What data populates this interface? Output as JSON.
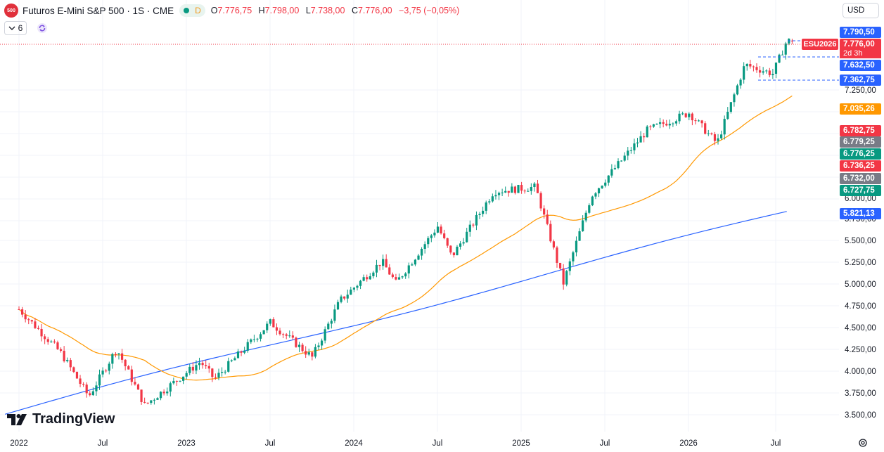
{
  "header": {
    "symbol_badge": "500",
    "title": "Futuros E-Mini S&P 500 · 1S · CME",
    "d_letter": "D",
    "open_label": "O",
    "open": "7.776,75",
    "high_label": "H",
    "high": "7.798,00",
    "low_label": "L",
    "low": "7.738,00",
    "close_label": "C",
    "close": "7.776,00",
    "change": "−3,75 (−0,05%)"
  },
  "indicators": {
    "count": "6",
    "chevron_icon": "chevron-down-icon",
    "refresh_icon": "refresh-icon"
  },
  "currency": "USD",
  "logo_text": "TradingView",
  "settings_icon": "gear-icon",
  "price_axis": {
    "ticks": [
      "7.250,00",
      "6.000,00",
      "5.750,00",
      "5.500,00",
      "5.250,00",
      "5.000,00",
      "4.750,00",
      "4.500,00",
      "4.250,00",
      "4.000,00",
      "3.750,00",
      "3.500,00"
    ]
  },
  "time_axis": {
    "ticks": [
      "2022",
      "Jul",
      "2023",
      "Jul",
      "2024",
      "Jul",
      "2025",
      "Jul",
      "2026",
      "Jul"
    ]
  },
  "price_labels": [
    {
      "text": "7.790,50",
      "color": "#2962ff"
    },
    {
      "text": "7.776,00",
      "color": "#f23645"
    },
    {
      "text": "2d 3h",
      "color": "#f23645"
    },
    {
      "text": "7.632,50",
      "color": "#2962ff"
    },
    {
      "text": "7.362,75",
      "color": "#2962ff"
    },
    {
      "text": "7.035,26",
      "color": "#ff9800"
    },
    {
      "text": "6.782,75",
      "color": "#f23645"
    },
    {
      "text": "6.779,25",
      "color": "#787b86"
    },
    {
      "text": "6.776,25",
      "color": "#089981"
    },
    {
      "text": "6.736,25",
      "color": "#f23645"
    },
    {
      "text": "6.732,00",
      "color": "#787b86"
    },
    {
      "text": "6.727,75",
      "color": "#089981"
    },
    {
      "text": "5.821,13",
      "color": "#2962ff"
    }
  ],
  "contract_badge": "ESU2026",
  "colors": {
    "up": "#089981",
    "down": "#f23645",
    "ma_short": "#ff9800",
    "ma_long": "#2962ff"
  },
  "chart_data": {
    "type": "candlestick",
    "title": "",
    "timeframe": "1S",
    "x": [
      "2022-01",
      "2022-04",
      "2022-07",
      "2022-10",
      "2023-01",
      "2023-04",
      "2023-07",
      "2023-10",
      "2024-01",
      "2024-04",
      "2024-07",
      "2024-10",
      "2025-01",
      "2025-04",
      "2025-07",
      "2025-10",
      "2026-01",
      "2026-04",
      "2026-07",
      "2026-08"
    ],
    "ohlc_keypoints": [
      {
        "x": "2022-01",
        "close": 4700
      },
      {
        "x": "2022-04",
        "close": 4200
      },
      {
        "x": "2022-06",
        "close": 3700
      },
      {
        "x": "2022-08",
        "close": 4250
      },
      {
        "x": "2022-10",
        "close": 3600
      },
      {
        "x": "2022-12",
        "close": 3850
      },
      {
        "x": "2023-02",
        "close": 4100
      },
      {
        "x": "2023-03",
        "close": 3900
      },
      {
        "x": "2023-07",
        "close": 4550
      },
      {
        "x": "2023-10",
        "close": 4150
      },
      {
        "x": "2023-12",
        "close": 4800
      },
      {
        "x": "2024-03",
        "close": 5250
      },
      {
        "x": "2024-04",
        "close": 5000
      },
      {
        "x": "2024-07",
        "close": 5650
      },
      {
        "x": "2024-08",
        "close": 5300
      },
      {
        "x": "2024-11",
        "close": 6050
      },
      {
        "x": "2025-02",
        "close": 6100
      },
      {
        "x": "2025-04",
        "close": 5000
      },
      {
        "x": "2025-06",
        "close": 6000
      },
      {
        "x": "2025-10",
        "close": 6750
      },
      {
        "x": "2026-01",
        "close": 6950
      },
      {
        "x": "2026-03",
        "close": 6600
      },
      {
        "x": "2026-05",
        "close": 7500
      },
      {
        "x": "2026-07",
        "close": 7400
      },
      {
        "x": "2026-08",
        "close": 7776
      }
    ],
    "series": [
      {
        "values_ref": "ohlc_keypoints"
      },
      {
        "color": "#ff9800",
        "last": 7035.26
      },
      {
        "color": "#2962ff",
        "last": 5821.13
      }
    ],
    "ylim": [
      3400,
      7900
    ],
    "grid": true
  }
}
